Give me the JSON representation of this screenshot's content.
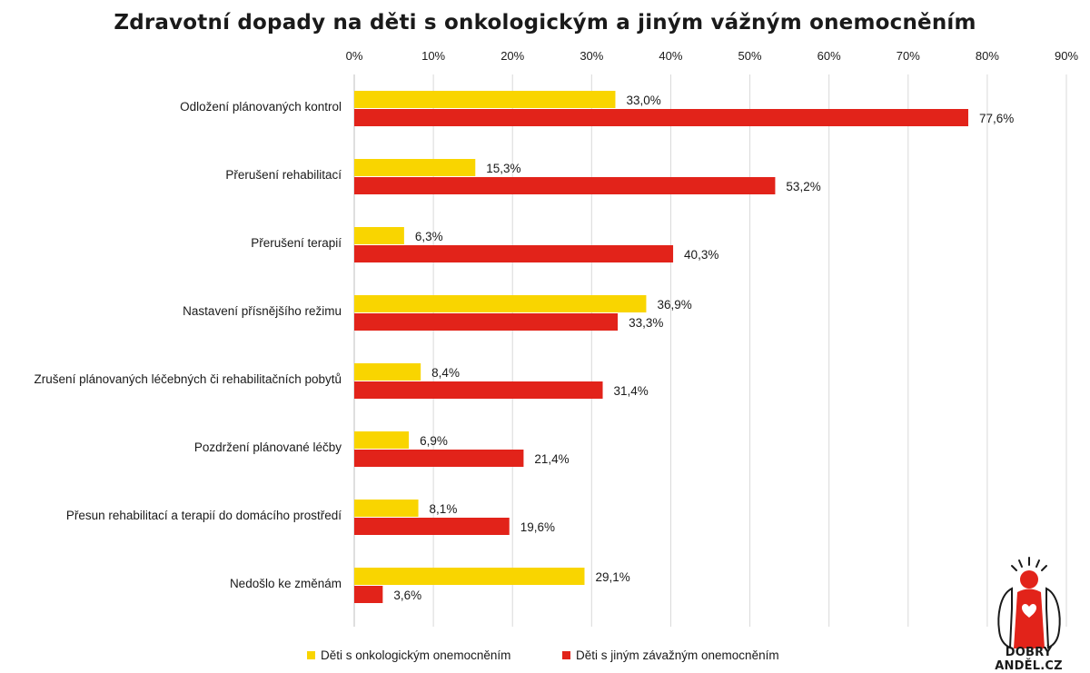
{
  "chart_data": {
    "type": "bar",
    "orientation": "horizontal",
    "title": "Zdravotní dopady na děti s onkologickým a jiným vážným onemocněním",
    "categories": [
      "Odložení plánovaných kontrol",
      "Přerušení rehabilitací",
      "Přerušení terapií",
      "Nastavení přísnějšího režimu",
      "Zrušení plánovaných léčebných či rehabilitačních pobytů",
      "Pozdržení plánované léčby",
      "Přesun rehabilitací a terapií do domácího prostředí",
      "Nedošlo ke změnám"
    ],
    "series": [
      {
        "name": "Děti s onkologickým onemocněním",
        "color": "#f9d500",
        "values": [
          33.0,
          15.3,
          6.3,
          36.9,
          8.4,
          6.9,
          8.1,
          29.1
        ],
        "labels": [
          "33,0%",
          "15,3%",
          "6,3%",
          "36,9%",
          "8,4%",
          "6,9%",
          "8,1%",
          "29,1%"
        ]
      },
      {
        "name": "Děti s jiným závažným onemocněním",
        "color": "#e2231a",
        "values": [
          77.6,
          53.2,
          40.3,
          33.3,
          31.4,
          21.4,
          19.6,
          3.6
        ],
        "labels": [
          "77,6%",
          "53,2%",
          "40,3%",
          "33,3%",
          "31,4%",
          "21,4%",
          "19,6%",
          "3,6%"
        ]
      }
    ],
    "xlim": [
      0,
      90
    ],
    "x_ticks": [
      "0%",
      "10%",
      "20%",
      "30%",
      "40%",
      "50%",
      "60%",
      "70%",
      "80%",
      "90%"
    ],
    "x_axis_position": "top",
    "grid": true,
    "legend_position": "bottom"
  },
  "brand": {
    "name": "DOBRÝ ANDĚL.CZ",
    "logo_icon": "angel-heart-logo-icon"
  }
}
